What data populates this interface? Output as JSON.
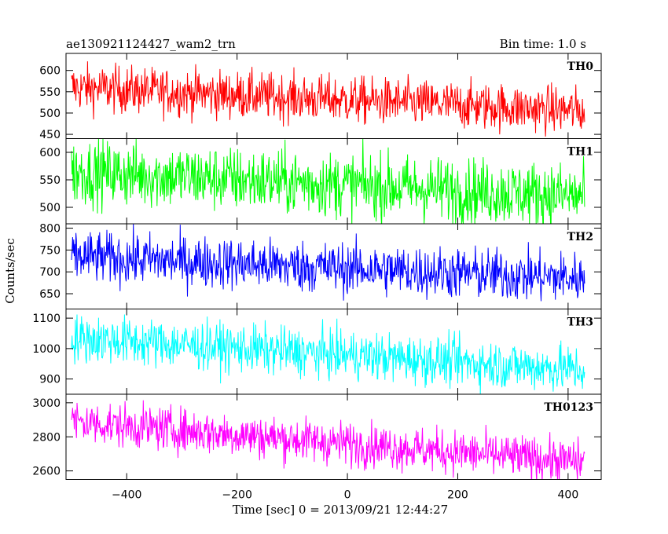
{
  "chart_data": {
    "type": "line",
    "title": "ae130921124427_wam2_trn",
    "bin_time_label": "Bin time: 1.0 s",
    "xlabel": "Time [sec] 0 = 2013/09/21 12:44:27",
    "ylabel": "Counts/sec",
    "xlim": [
      -510,
      460
    ],
    "x_ticks": [
      -400,
      -200,
      0,
      200,
      400
    ],
    "x_range": [
      -500,
      430
    ],
    "x_step": 1,
    "grid": false,
    "panels": [
      {
        "name": "TH0",
        "color": "#ff0000",
        "ylim": [
          440,
          640
        ],
        "ticks": [
          450,
          500,
          550,
          600
        ],
        "start_mean": 560,
        "end_mean": 505,
        "noise": 28
      },
      {
        "name": "TH1",
        "color": "#00ff00",
        "ylim": [
          470,
          625
        ],
        "ticks": [
          500,
          550,
          600
        ],
        "start_mean": 565,
        "end_mean": 520,
        "noise": 30
      },
      {
        "name": "TH2",
        "color": "#0000ff",
        "ylim": [
          615,
          810
        ],
        "ticks": [
          650,
          700,
          750,
          800
        ],
        "start_mean": 735,
        "end_mean": 685,
        "noise": 30
      },
      {
        "name": "TH3",
        "color": "#00ffff",
        "ylim": [
          850,
          1130
        ],
        "ticks": [
          900,
          1000,
          1100
        ],
        "start_mean": 1035,
        "end_mean": 930,
        "noise": 40
      },
      {
        "name": "TH0123",
        "color": "#ff00ff",
        "ylim": [
          2550,
          3050
        ],
        "ticks": [
          2600,
          2800,
          3000
        ],
        "start_mean": 2890,
        "end_mean": 2650,
        "noise": 65
      }
    ]
  }
}
